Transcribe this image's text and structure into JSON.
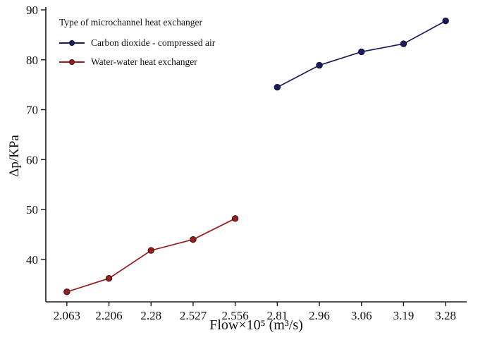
{
  "chart_data": {
    "type": "line",
    "title": "",
    "legend_title": "Type of microchannel heat exchanger",
    "xlabel": "Flow×10⁵  (m³/s)",
    "ylabel": "Δp/KPa",
    "categories": [
      "2.063",
      "2.206",
      "2.28",
      "2.527",
      "2.556",
      "2.81",
      "2.96",
      "3.06",
      "3.19",
      "3.28"
    ],
    "series": [
      {
        "name": "Carbon dioxide - compressed air",
        "color": "#1b1b5e",
        "edge": "#0d0d33",
        "values": [
          null,
          null,
          null,
          null,
          null,
          74.5,
          78.9,
          81.6,
          83.2,
          87.8
        ]
      },
      {
        "name": "Water-water heat exchanger",
        "color": "#991d1d",
        "edge": "#3a0d0d",
        "values": [
          33.5,
          36.2,
          41.8,
          44.0,
          48.2,
          null,
          null,
          null,
          null,
          null
        ]
      }
    ],
    "ylim": [
      31.5,
      90
    ],
    "yticks": [
      40,
      50,
      60,
      70,
      80,
      90
    ],
    "legend_position": "top-left",
    "grid": false
  },
  "colors": {
    "axis": "#1a1a1a",
    "background": "#ffffff"
  }
}
